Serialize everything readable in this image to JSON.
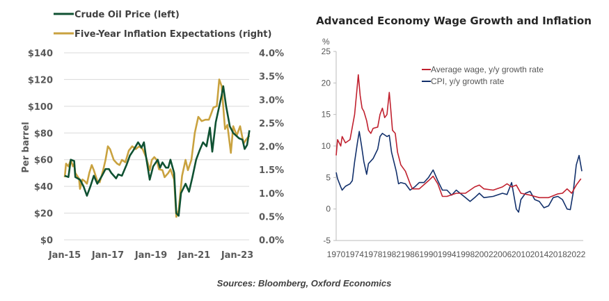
{
  "chart_data": [
    {
      "type": "line",
      "title": "",
      "ylabel": "Per barrel",
      "ylim": [
        0,
        140
      ],
      "y2lim": [
        0,
        4.0
      ],
      "y_ticks": [
        "$0",
        "$20",
        "$40",
        "$60",
        "$80",
        "$100",
        "$120",
        "$140"
      ],
      "y2_ticks": [
        "0.0%",
        "0.5%",
        "1.0%",
        "1.5%",
        "2.0%",
        "2.5%",
        "3.0%",
        "3.5%",
        "4.0%"
      ],
      "x_ticks": [
        {
          "label": "Jan-15",
          "x": 2015
        },
        {
          "label": "Jan-17",
          "x": 2017
        },
        {
          "label": "Jan-19",
          "x": 2019
        },
        {
          "label": "Jan-21",
          "x": 2021
        },
        {
          "label": "Jan-23",
          "x": 2023
        }
      ],
      "xlim": [
        2015,
        2023.6
      ],
      "legend": "top-left",
      "series": [
        {
          "name": "Crude Oil Price (left)",
          "color": "#0f5132",
          "axis": "left",
          "points": [
            [
              2015.0,
              48
            ],
            [
              2015.17,
              47
            ],
            [
              2015.28,
              60
            ],
            [
              2015.44,
              59
            ],
            [
              2015.49,
              47
            ],
            [
              2015.71,
              45
            ],
            [
              2015.87,
              40
            ],
            [
              2016.03,
              33
            ],
            [
              2016.19,
              40
            ],
            [
              2016.35,
              48
            ],
            [
              2016.51,
              42
            ],
            [
              2016.73,
              48
            ],
            [
              2016.89,
              53
            ],
            [
              2017.05,
              53
            ],
            [
              2017.16,
              50
            ],
            [
              2017.38,
              46
            ],
            [
              2017.48,
              49
            ],
            [
              2017.65,
              48
            ],
            [
              2017.86,
              56
            ],
            [
              2018.02,
              63
            ],
            [
              2018.18,
              67
            ],
            [
              2018.4,
              73
            ],
            [
              2018.56,
              69
            ],
            [
              2018.67,
              73
            ],
            [
              2018.77,
              62
            ],
            [
              2018.94,
              45
            ],
            [
              2019.1,
              55
            ],
            [
              2019.31,
              60
            ],
            [
              2019.42,
              54
            ],
            [
              2019.53,
              58
            ],
            [
              2019.69,
              54
            ],
            [
              2019.8,
              54
            ],
            [
              2019.9,
              60
            ],
            [
              2020.07,
              50
            ],
            [
              2020.17,
              20
            ],
            [
              2020.28,
              18
            ],
            [
              2020.39,
              35
            ],
            [
              2020.6,
              42
            ],
            [
              2020.76,
              36
            ],
            [
              2020.92,
              47
            ],
            [
              2021.09,
              60
            ],
            [
              2021.25,
              67
            ],
            [
              2021.41,
              73
            ],
            [
              2021.57,
              70
            ],
            [
              2021.73,
              84
            ],
            [
              2021.84,
              66
            ],
            [
              2022.0,
              88
            ],
            [
              2022.27,
              108
            ],
            [
              2022.35,
              115
            ],
            [
              2022.48,
              100
            ],
            [
              2022.65,
              85
            ],
            [
              2022.81,
              80
            ],
            [
              2023.08,
              76
            ],
            [
              2023.24,
              75
            ],
            [
              2023.34,
              68
            ],
            [
              2023.45,
              71
            ],
            [
              2023.56,
              82
            ]
          ]
        },
        {
          "name": "Five-Year Inflation Expectations (right)",
          "color": "#c9a23f",
          "axis": "right",
          "points": [
            [
              2015.0,
              1.34
            ],
            [
              2015.06,
              1.63
            ],
            [
              2015.17,
              1.57
            ],
            [
              2015.28,
              1.71
            ],
            [
              2015.38,
              1.57
            ],
            [
              2015.44,
              1.63
            ],
            [
              2015.49,
              1.43
            ],
            [
              2015.66,
              1.31
            ],
            [
              2015.71,
              1.09
            ],
            [
              2015.82,
              1.29
            ],
            [
              2015.92,
              1.26
            ],
            [
              2016.03,
              1.2
            ],
            [
              2016.14,
              1.43
            ],
            [
              2016.25,
              1.6
            ],
            [
              2016.35,
              1.49
            ],
            [
              2016.51,
              1.26
            ],
            [
              2016.62,
              1.23
            ],
            [
              2016.78,
              1.49
            ],
            [
              2016.89,
              1.71
            ],
            [
              2017.0,
              2.0
            ],
            [
              2017.1,
              1.94
            ],
            [
              2017.27,
              1.71
            ],
            [
              2017.43,
              1.63
            ],
            [
              2017.54,
              1.6
            ],
            [
              2017.65,
              1.71
            ],
            [
              2017.81,
              1.66
            ],
            [
              2017.97,
              1.91
            ],
            [
              2018.13,
              2.0
            ],
            [
              2018.29,
              1.94
            ],
            [
              2018.45,
              2.0
            ],
            [
              2018.61,
              1.94
            ],
            [
              2018.77,
              1.77
            ],
            [
              2018.94,
              1.49
            ],
            [
              2019.04,
              1.71
            ],
            [
              2019.15,
              1.77
            ],
            [
              2019.26,
              1.71
            ],
            [
              2019.37,
              1.51
            ],
            [
              2019.53,
              1.49
            ],
            [
              2019.63,
              1.34
            ],
            [
              2019.8,
              1.43
            ],
            [
              2019.9,
              1.51
            ],
            [
              2020.07,
              1.29
            ],
            [
              2020.17,
              0.49
            ],
            [
              2020.28,
              0.63
            ],
            [
              2020.44,
              1.37
            ],
            [
              2020.6,
              1.71
            ],
            [
              2020.71,
              1.49
            ],
            [
              2020.87,
              1.71
            ],
            [
              2021.03,
              2.29
            ],
            [
              2021.19,
              2.63
            ],
            [
              2021.35,
              2.54
            ],
            [
              2021.52,
              2.57
            ],
            [
              2021.68,
              2.57
            ],
            [
              2021.78,
              2.69
            ],
            [
              2021.89,
              2.83
            ],
            [
              2022.05,
              2.86
            ],
            [
              2022.16,
              3.43
            ],
            [
              2022.27,
              3.29
            ],
            [
              2022.43,
              2.37
            ],
            [
              2022.54,
              2.46
            ],
            [
              2022.7,
              1.86
            ],
            [
              2022.81,
              2.43
            ],
            [
              2022.97,
              2.23
            ],
            [
              2023.13,
              2.43
            ],
            [
              2023.29,
              2.06
            ],
            [
              2023.4,
              2.14
            ],
            [
              2023.56,
              2.23
            ]
          ]
        }
      ]
    },
    {
      "type": "line",
      "title": "Advanced Economy Wage Growth and Inflation",
      "ylabel": "%",
      "ylim": [
        -5,
        25
      ],
      "y_ticks": [
        "-5",
        "0",
        "5",
        "10",
        "15",
        "20",
        "25"
      ],
      "x_ticks": [
        "1970",
        "1974",
        "1978",
        "1982",
        "1986",
        "1990",
        "1994",
        "1998",
        "2002",
        "2006",
        "2010",
        "2014",
        "2018",
        "2022"
      ],
      "xlim": [
        1970,
        2023.3
      ],
      "legend": "top-center",
      "series": [
        {
          "name": "Average wage, y/y growth rate",
          "color": "#c0202e",
          "points": [
            [
              1970,
              8.5
            ],
            [
              1970.3,
              11
            ],
            [
              1971,
              10
            ],
            [
              1971.3,
              11.5
            ],
            [
              1972,
              10.5
            ],
            [
              1973,
              11
            ],
            [
              1973.5,
              13
            ],
            [
              1974,
              15
            ],
            [
              1974.5,
              19
            ],
            [
              1974.8,
              21.3
            ],
            [
              1975.2,
              18
            ],
            [
              1975.6,
              16
            ],
            [
              1976,
              15.5
            ],
            [
              1976.6,
              14
            ],
            [
              1977,
              12.5
            ],
            [
              1977.5,
              12
            ],
            [
              1978,
              12.8
            ],
            [
              1979,
              13
            ],
            [
              1979.5,
              15
            ],
            [
              1980,
              16
            ],
            [
              1980.5,
              14.5
            ],
            [
              1981,
              15
            ],
            [
              1981.5,
              18.5
            ],
            [
              1981.8,
              16
            ],
            [
              1982.2,
              12.5
            ],
            [
              1982.8,
              12
            ],
            [
              1983.3,
              9
            ],
            [
              1984,
              7
            ],
            [
              1985,
              6
            ],
            [
              1986,
              4
            ],
            [
              1986.5,
              3.2
            ],
            [
              1988,
              3.2
            ],
            [
              1990,
              4.5
            ],
            [
              1991,
              5.2
            ],
            [
              1992,
              4
            ],
            [
              1993,
              2
            ],
            [
              1994,
              2
            ],
            [
              1996,
              2.5
            ],
            [
              1998,
              2.5
            ],
            [
              2000,
              3.5
            ],
            [
              2001,
              3.8
            ],
            [
              2002,
              3.2
            ],
            [
              2004,
              3
            ],
            [
              2006,
              3.5
            ],
            [
              2007,
              4
            ],
            [
              2008,
              3.5
            ],
            [
              2009,
              3.8
            ],
            [
              2010,
              2.5
            ],
            [
              2012,
              2.2
            ],
            [
              2014,
              1.8
            ],
            [
              2016,
              1.8
            ],
            [
              2018,
              2.4
            ],
            [
              2019,
              2.5
            ],
            [
              2020,
              3.2
            ],
            [
              2021,
              2.5
            ],
            [
              2022,
              3.8
            ],
            [
              2023,
              4.8
            ]
          ]
        },
        {
          "name": "CPI, y/y growth rate",
          "color": "#12306b",
          "points": [
            [
              1970,
              5.8
            ],
            [
              1970.3,
              4.8
            ],
            [
              1971,
              3.5
            ],
            [
              1971.3,
              3
            ],
            [
              1972,
              3.6
            ],
            [
              1973,
              4
            ],
            [
              1973.5,
              4.5
            ],
            [
              1974,
              7.5
            ],
            [
              1974.6,
              10.5
            ],
            [
              1975,
              12.3
            ],
            [
              1975.5,
              10
            ],
            [
              1976,
              7.5
            ],
            [
              1976.6,
              5.5
            ],
            [
              1977,
              7.2
            ],
            [
              1978,
              8
            ],
            [
              1979,
              9.5
            ],
            [
              1979.5,
              11.5
            ],
            [
              1980,
              12
            ],
            [
              1981,
              11.5
            ],
            [
              1981.5,
              11.7
            ],
            [
              1982,
              9
            ],
            [
              1983,
              6
            ],
            [
              1983.5,
              4
            ],
            [
              1984,
              4.2
            ],
            [
              1985,
              4
            ],
            [
              1986,
              3
            ],
            [
              1987,
              3.5
            ],
            [
              1988,
              4.2
            ],
            [
              1989,
              4.2
            ],
            [
              1990,
              5
            ],
            [
              1991,
              6.2
            ],
            [
              1992,
              4.5
            ],
            [
              1993,
              3
            ],
            [
              1994,
              3
            ],
            [
              1995,
              2.2
            ],
            [
              1996,
              3
            ],
            [
              1998,
              1.8
            ],
            [
              1999,
              1.2
            ],
            [
              2000,
              1.8
            ],
            [
              2001,
              2.5
            ],
            [
              2002,
              1.8
            ],
            [
              2004,
              2
            ],
            [
              2006,
              2.5
            ],
            [
              2007,
              2.3
            ],
            [
              2008,
              4.2
            ],
            [
              2009,
              0
            ],
            [
              2009.5,
              -0.5
            ],
            [
              2010,
              1.5
            ],
            [
              2011,
              2.5
            ],
            [
              2012,
              2.8
            ],
            [
              2013,
              1.5
            ],
            [
              2014,
              1.2
            ],
            [
              2015,
              0.2
            ],
            [
              2016,
              0.5
            ],
            [
              2017,
              1.8
            ],
            [
              2018,
              2
            ],
            [
              2019,
              1.5
            ],
            [
              2020,
              0
            ],
            [
              2020.7,
              -0.1
            ],
            [
              2021.3,
              2.5
            ],
            [
              2022,
              7
            ],
            [
              2022.6,
              8.5
            ],
            [
              2023.2,
              6
            ]
          ]
        }
      ]
    }
  ],
  "footer": {
    "sources": "Sources: Bloomberg, Oxford Economics"
  }
}
